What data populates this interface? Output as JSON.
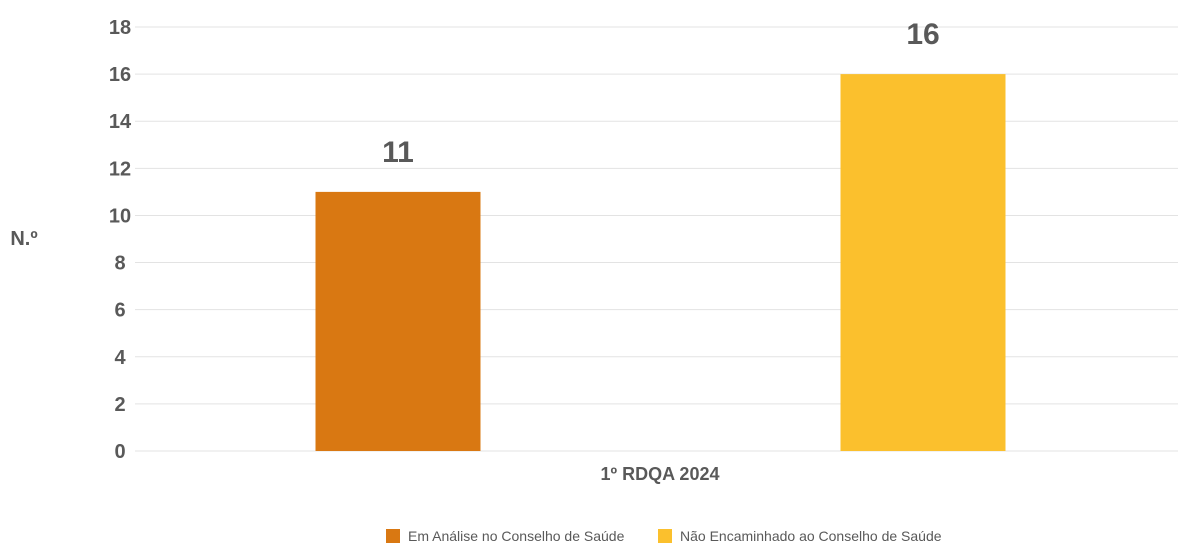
{
  "chart_data": {
    "type": "bar",
    "categories": [
      "1º RDQA 2024"
    ],
    "series": [
      {
        "name": "Em Análise no Conselho de Saúde",
        "values": [
          11
        ],
        "color": "#D97812"
      },
      {
        "name": "Não Encaminhado ao Conselho de Saúde",
        "values": [
          16
        ],
        "color": "#FBC02D"
      }
    ],
    "ylabel": "N.º",
    "xlabel": "",
    "ylim": [
      0,
      18
    ],
    "yticks": [
      0,
      2,
      4,
      6,
      8,
      10,
      12,
      14,
      16,
      18
    ],
    "grid": true,
    "legend": "bottom",
    "data_labels": true
  }
}
